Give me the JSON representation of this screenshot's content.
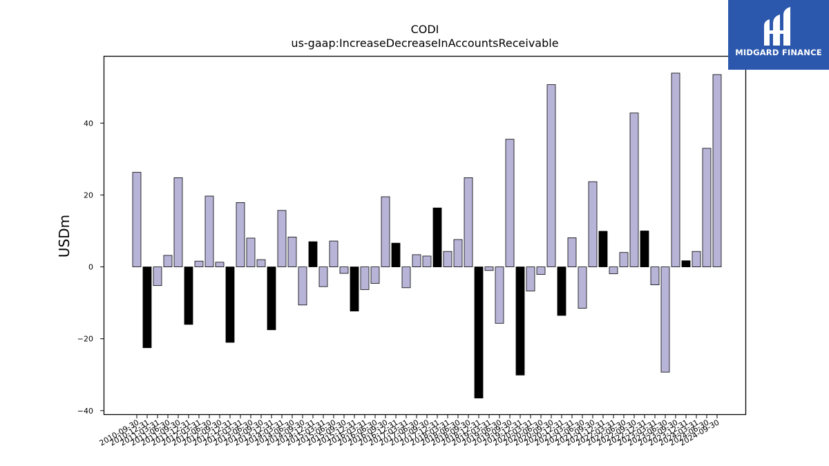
{
  "brand": {
    "name": "MIDGARD FINANCE",
    "bg_color": "#2b58ad"
  },
  "colors": {
    "positive_bar": "#b8b4d8",
    "negative_bar": "#000000",
    "bar_edge": "#000000"
  },
  "chart_data": {
    "type": "bar",
    "title": "CODI",
    "subtitle": "us-gaap:IncreaseDecreaseInAccountsReceivable",
    "ylabel": "USDm",
    "xlabel": "",
    "ylim": [
      -41,
      58.5
    ],
    "yticks": [
      -40,
      -20,
      0,
      20,
      40
    ],
    "ytick_labels": [
      "−40",
      "−20",
      "0",
      "20",
      "40"
    ],
    "grid": false,
    "categories": [
      "2010-09-30",
      "2010-12-31",
      "2011-03-31",
      "2011-06-30",
      "2011-09-30",
      "2011-12-31",
      "2012-03-31",
      "2012-06-30",
      "2012-09-30",
      "2012-12-31",
      "2013-03-31",
      "2013-06-30",
      "2013-09-30",
      "2013-12-31",
      "2014-03-31",
      "2014-06-30",
      "2014-09-30",
      "2014-12-31",
      "2015-03-31",
      "2015-06-30",
      "2015-09-30",
      "2015-12-31",
      "2016-03-31",
      "2016-06-30",
      "2016-09-30",
      "2016-12-31",
      "2017-03-31",
      "2017-06-30",
      "2017-09-30",
      "2017-12-31",
      "2018-03-31",
      "2018-06-30",
      "2018-09-30",
      "2018-12-31",
      "2019-03-31",
      "2019-06-30",
      "2019-09-30",
      "2019-12-31",
      "2020-03-31",
      "2020-06-30",
      "2020-09-30",
      "2020-12-31",
      "2021-03-31",
      "2021-06-30",
      "2021-09-30",
      "2021-12-31",
      "2022-03-31",
      "2022-06-30",
      "2022-09-30",
      "2022-12-31",
      "2023-03-31",
      "2023-06-30",
      "2023-09-30",
      "2023-12-31",
      "2024-03-31",
      "2024-06-30",
      "2024-09-30"
    ],
    "values": [
      26.3,
      -22.5,
      -5.2,
      3.2,
      24.8,
      -16.0,
      1.6,
      19.7,
      1.3,
      -21.0,
      17.9,
      8.0,
      2.0,
      -17.5,
      15.7,
      8.3,
      -10.6,
      7.0,
      -5.5,
      7.2,
      -1.8,
      -12.3,
      -6.3,
      -4.6,
      19.5,
      6.6,
      -5.8,
      3.4,
      3.0,
      16.4,
      4.3,
      7.6,
      24.8,
      -36.5,
      -1.0,
      -15.7,
      35.5,
      -30.1,
      -6.7,
      -2.1,
      50.7,
      -13.5,
      8.1,
      -11.5,
      23.7,
      9.9,
      -1.9,
      4.0,
      42.8,
      10.0,
      -5.0,
      -29.3,
      53.9,
      1.7,
      4.3,
      33.0,
      53.5
    ],
    "bar_color_flags": [
      "p",
      "n",
      "p",
      "p",
      "p",
      "n",
      "p",
      "p",
      "p",
      "n",
      "p",
      "p",
      "p",
      "n",
      "p",
      "p",
      "p",
      "n",
      "p",
      "p",
      "p",
      "n",
      "p",
      "p",
      "p",
      "n",
      "p",
      "p",
      "p",
      "n",
      "p",
      "p",
      "p",
      "n",
      "p",
      "p",
      "p",
      "n",
      "p",
      "p",
      "p",
      "n",
      "p",
      "p",
      "p",
      "n",
      "p",
      "p",
      "p",
      "n",
      "p",
      "p",
      "p",
      "n",
      "p",
      "p",
      "p"
    ]
  }
}
